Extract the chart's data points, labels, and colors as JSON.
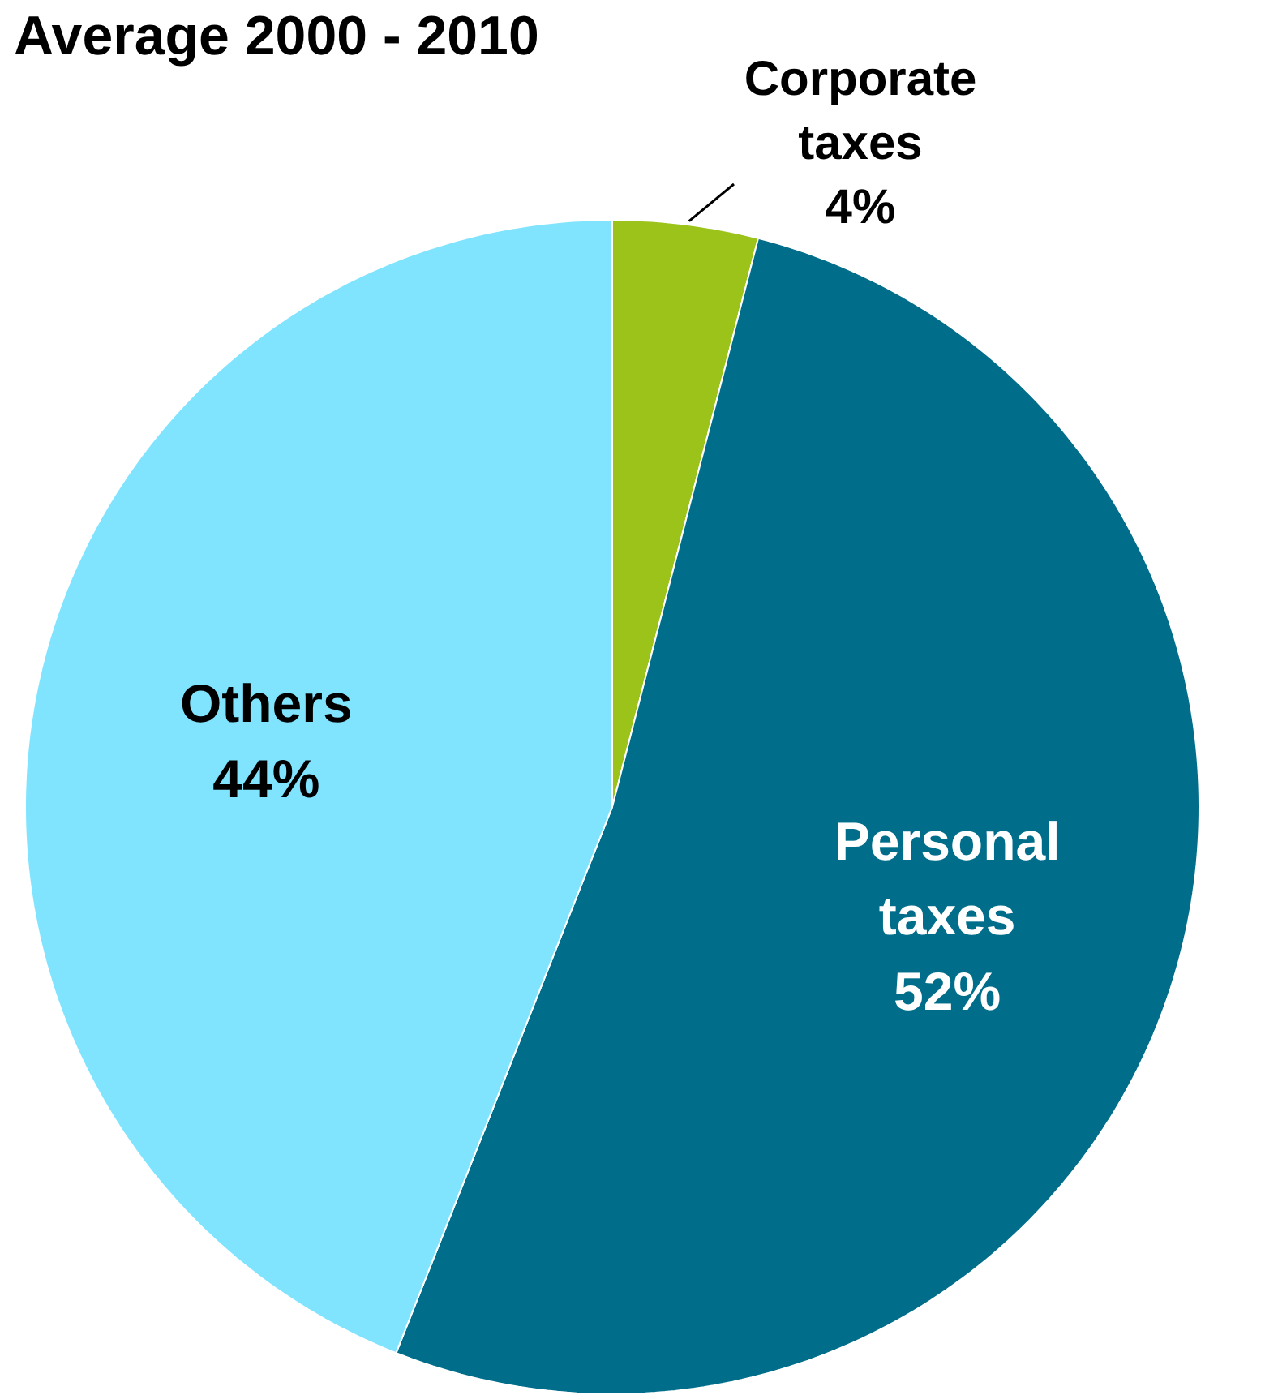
{
  "chart_data": {
    "type": "pie",
    "title": "Average 2000 - 2010",
    "categories": [
      "Corporate taxes",
      "Personal taxes",
      "Others"
    ],
    "values": [
      4,
      52,
      44
    ],
    "colors": [
      "#9bc31a",
      "#006e8a",
      "#80e4ff"
    ],
    "value_labels": [
      "4%",
      "52%",
      "44%"
    ]
  }
}
